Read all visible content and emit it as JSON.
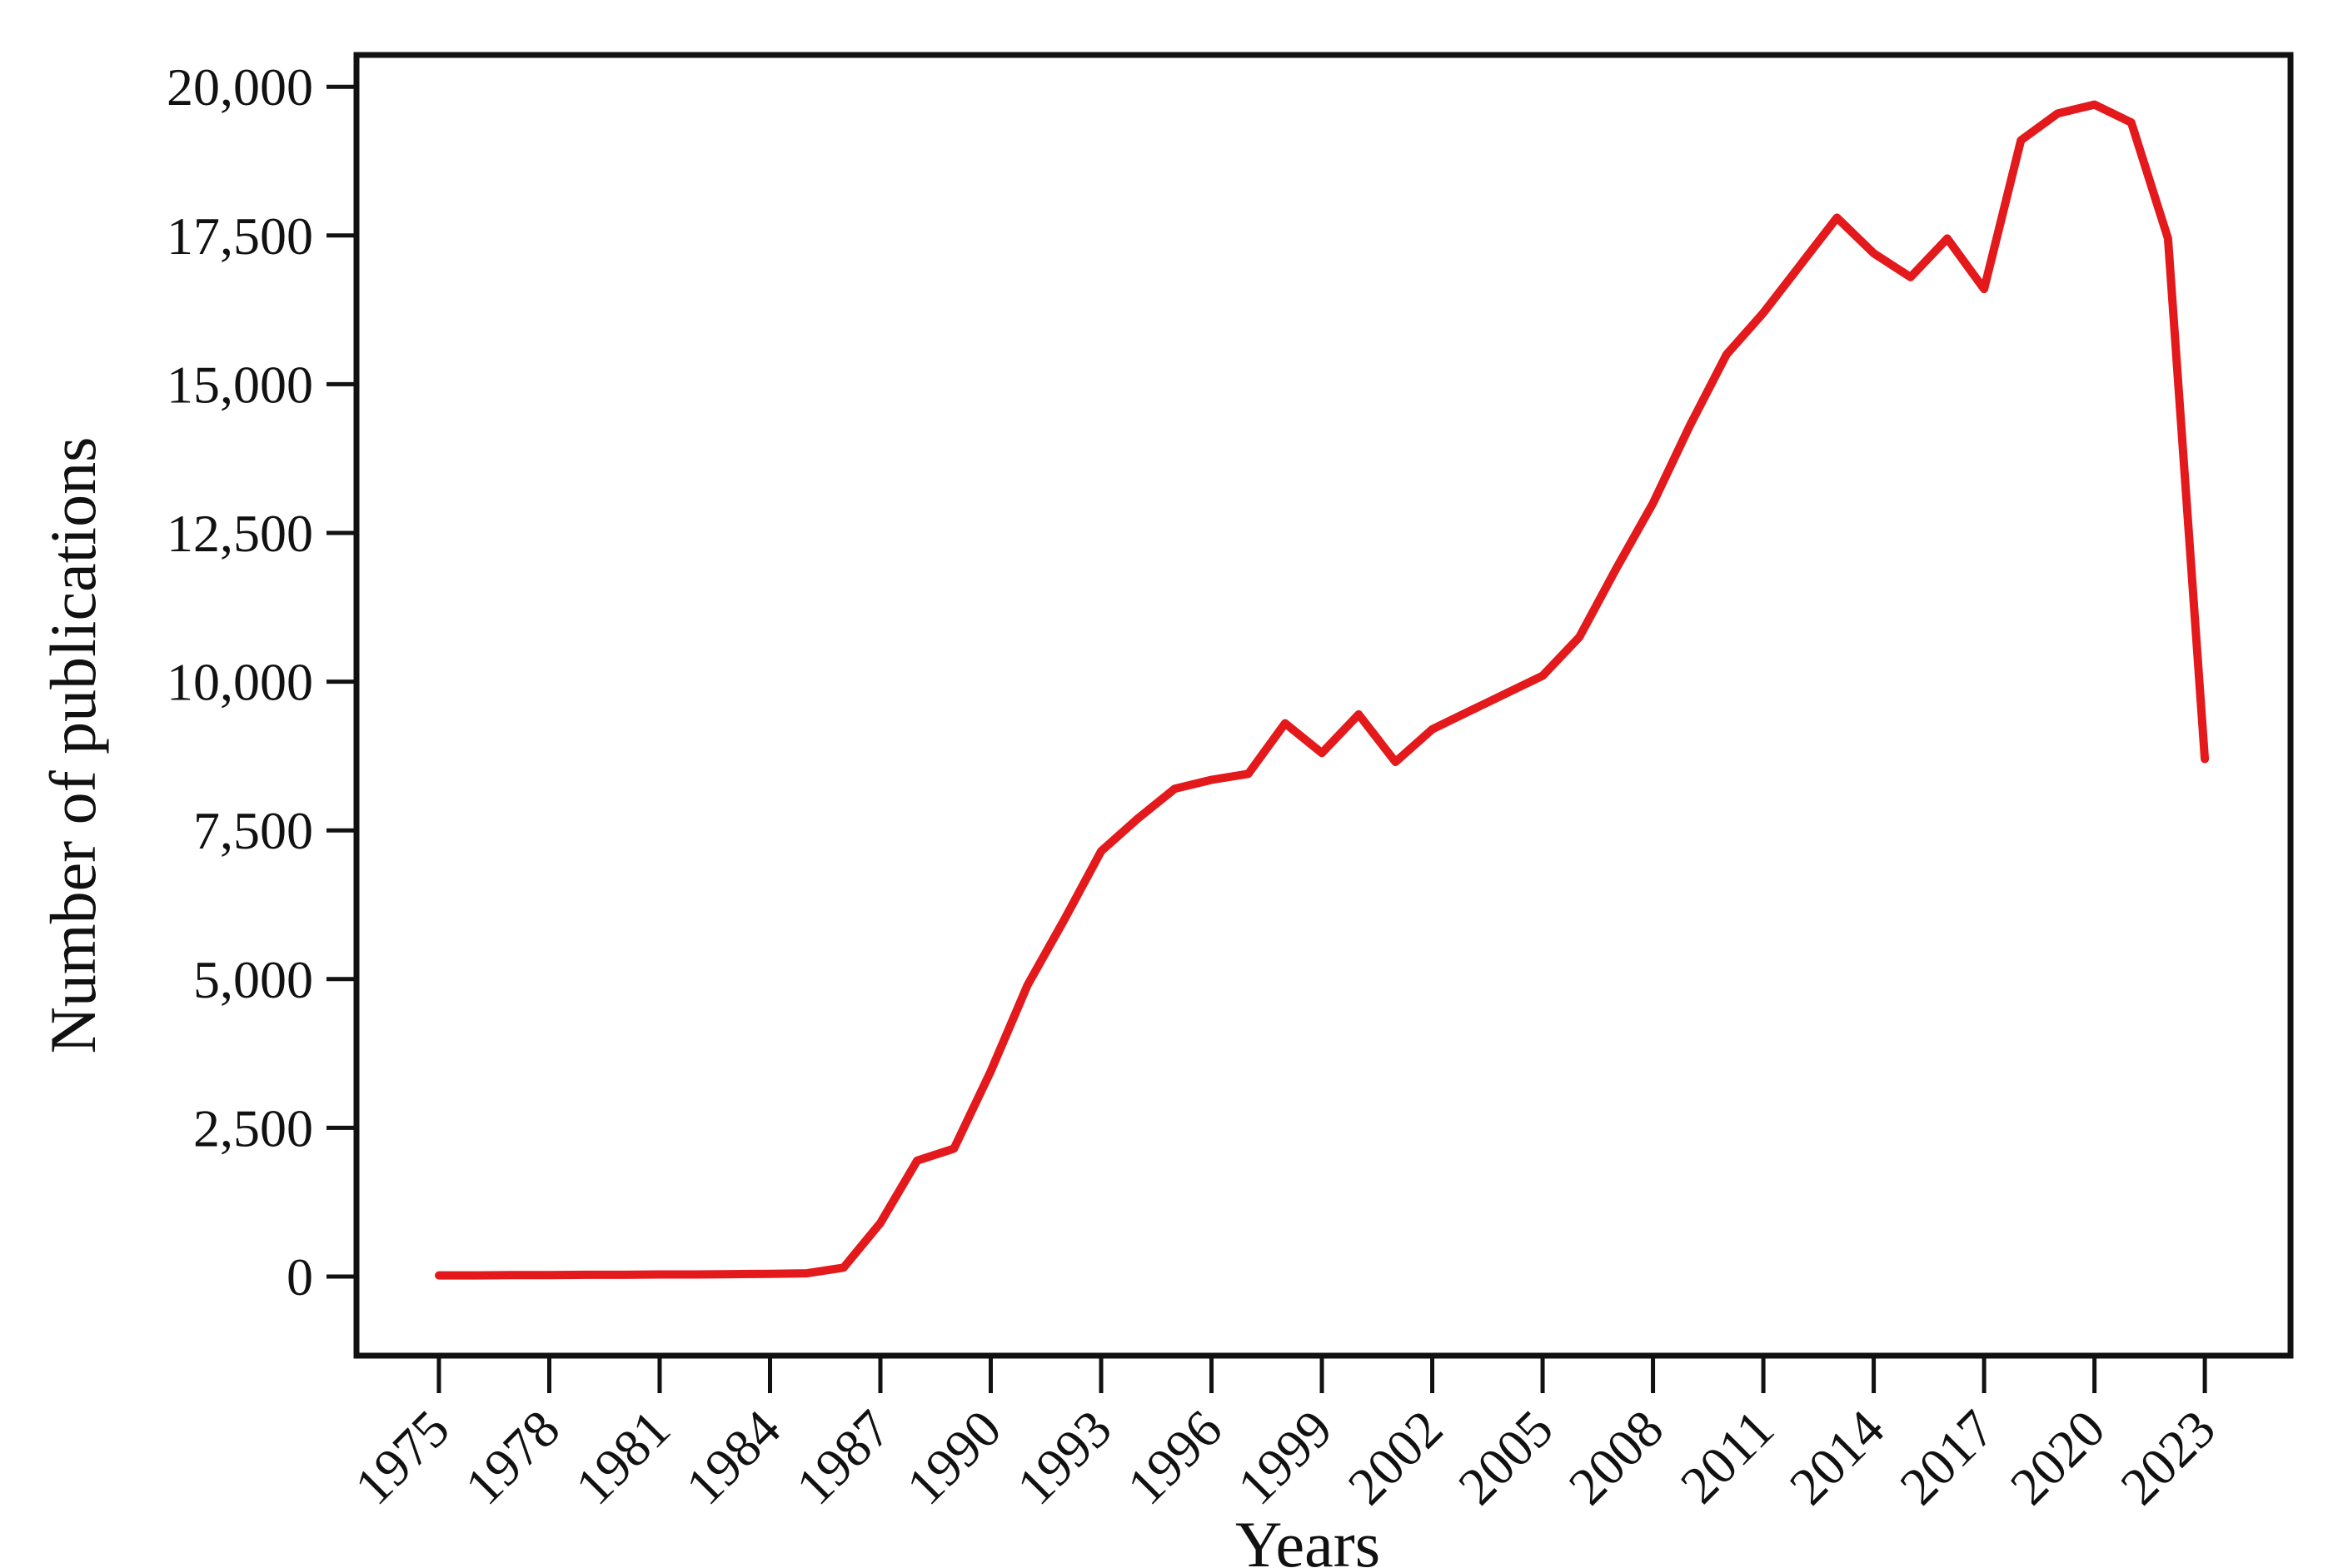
{
  "figure": {
    "background_color": "#ffffff",
    "axis_color": "#111111"
  },
  "chart_data": {
    "type": "line",
    "title": "",
    "xlabel": "Years",
    "ylabel": "Number of publications",
    "legend": null,
    "grid": false,
    "line_color": "#e4191c",
    "x": [
      1975,
      1976,
      1977,
      1978,
      1979,
      1980,
      1981,
      1982,
      1983,
      1984,
      1985,
      1986,
      1987,
      1988,
      1989,
      1990,
      1991,
      1992,
      1993,
      1994,
      1995,
      1996,
      1997,
      1998,
      1999,
      2000,
      2001,
      2002,
      2003,
      2004,
      2005,
      2006,
      2007,
      2008,
      2009,
      2010,
      2011,
      2012,
      2013,
      2014,
      2015,
      2016,
      2017,
      2018,
      2019,
      2020,
      2021,
      2022,
      2023
    ],
    "values": [
      20,
      20,
      25,
      25,
      30,
      30,
      35,
      35,
      40,
      45,
      55,
      150,
      900,
      1950,
      2150,
      3450,
      4900,
      6000,
      7150,
      7700,
      8200,
      8350,
      8450,
      9300,
      8800,
      9450,
      8650,
      9200,
      9500,
      9800,
      10100,
      10750,
      11900,
      13000,
      14300,
      15500,
      16200,
      17000,
      17800,
      17200,
      16800,
      17450,
      16600,
      19100,
      19550,
      19700,
      19400,
      17450,
      8700
    ],
    "x_tick_labels": [
      "1975",
      "1978",
      "1981",
      "1984",
      "1987",
      "1990",
      "1993",
      "1996",
      "1999",
      "2002",
      "2005",
      "2008",
      "2011",
      "2014",
      "2017",
      "2020",
      "2023"
    ],
    "x_tick_years": [
      1975,
      1978,
      1981,
      1984,
      1987,
      1990,
      1993,
      1996,
      1999,
      2002,
      2005,
      2008,
      2011,
      2014,
      2017,
      2020,
      2023
    ],
    "y_tick_labels": [
      "0",
      "2,500",
      "5,000",
      "7,500",
      "10,000",
      "12,500",
      "15,000",
      "17,500",
      "20,000"
    ],
    "y_tick_values": [
      0,
      2500,
      5000,
      7500,
      10000,
      12500,
      15000,
      17500,
      20000
    ],
    "ylim": [
      0,
      20500
    ],
    "xlim": [
      1972.7,
      2025.4
    ]
  }
}
